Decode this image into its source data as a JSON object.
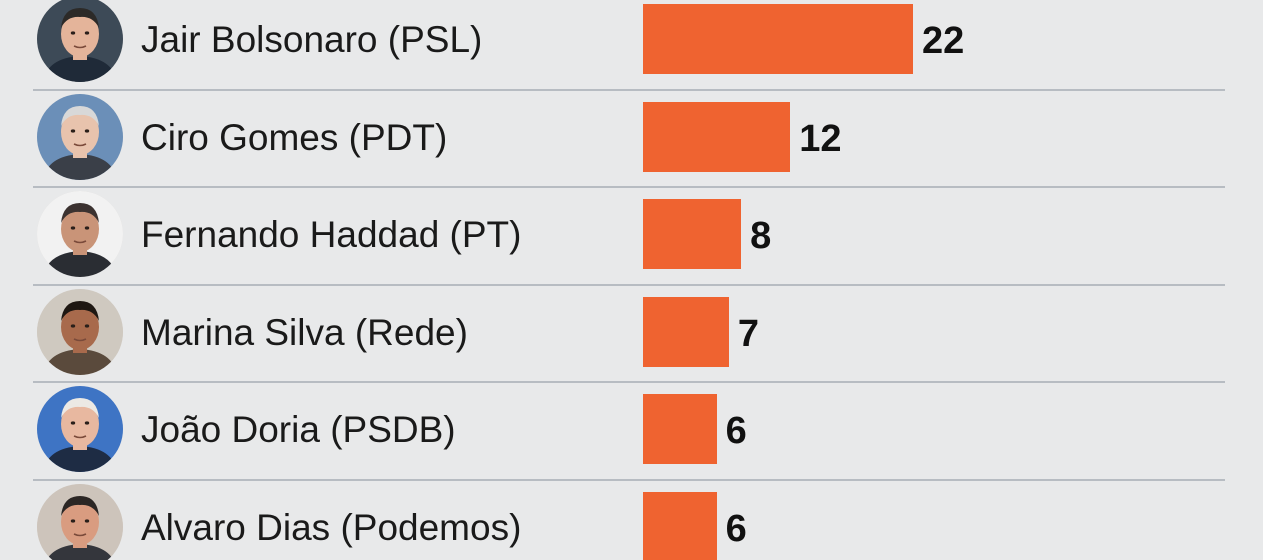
{
  "chart_data": {
    "type": "bar",
    "orientation": "horizontal",
    "categories": [
      "Jair Bolsonaro (PSL)",
      "Ciro Gomes (PDT)",
      "Fernando Haddad (PT)",
      "Marina Silva (Rede)",
      "João Doria (PSDB)",
      "Alvaro Dias (Podemos)"
    ],
    "values": [
      22,
      12,
      8,
      7,
      6,
      6
    ],
    "value_labels": [
      "22",
      "12",
      "8",
      "7",
      "6",
      "6"
    ],
    "bar_color": "#ef6330",
    "grid": false,
    "legend": "none"
  },
  "avatars": [
    {
      "icon": "jair-bolsonaro-portrait-icon",
      "bg": "#3d4a57",
      "skin": "#e4b49a",
      "hair": "#2c2a28",
      "suit": "#1f2a38"
    },
    {
      "icon": "ciro-gomes-portrait-icon",
      "bg": "#6b8fb8",
      "skin": "#e8c3ad",
      "hair": "#d8d8d8",
      "suit": "#3a3f48"
    },
    {
      "icon": "fernando-haddad-portrait-icon",
      "bg": "#f2f2f2",
      "skin": "#c99478",
      "hair": "#3b3230",
      "suit": "#2a2d33"
    },
    {
      "icon": "marina-silva-portrait-icon",
      "bg": "#cfc9c0",
      "skin": "#a86a4c",
      "hair": "#1e1712",
      "suit": "#5a4a3c"
    },
    {
      "icon": "joao-doria-portrait-icon",
      "bg": "#3e74c4",
      "skin": "#e8b8a0",
      "hair": "#ece9e4",
      "suit": "#1e2c44"
    },
    {
      "icon": "alvaro-dias-portrait-icon",
      "bg": "#cdc4bb",
      "skin": "#d99c80",
      "hair": "#2b2624",
      "suit": "#34363c"
    }
  ]
}
